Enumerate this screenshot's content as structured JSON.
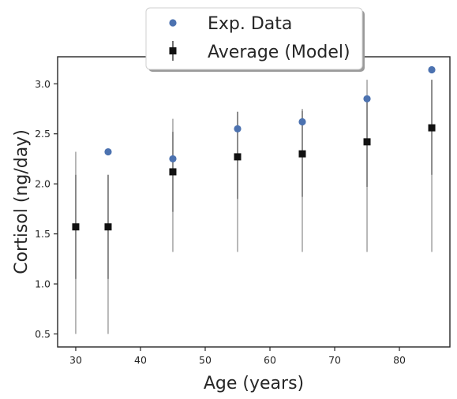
{
  "chart_data": {
    "type": "scatter",
    "title": "",
    "xlabel": "Age (years)",
    "ylabel": "Cortisol (ng/day)",
    "xlim": [
      27.2,
      87.8
    ],
    "ylim": [
      0.37,
      3.27
    ],
    "xticks": [
      30,
      40,
      50,
      60,
      70,
      80
    ],
    "yticks": [
      0.5,
      1.0,
      1.5,
      2.0,
      2.5,
      3.0
    ],
    "grid": false,
    "legend_position": "upper-center",
    "series": [
      {
        "name": "Exp. Data",
        "marker": "circle",
        "color": "#4c72b0",
        "x": [
          35,
          45,
          55,
          65,
          75,
          85
        ],
        "y": [
          2.32,
          2.25,
          2.55,
          2.62,
          2.85,
          3.14
        ]
      },
      {
        "name": "Average (Model)",
        "marker": "square",
        "color": "#111111",
        "errorbar_color": "#808080",
        "x": [
          30,
          35,
          45,
          55,
          65,
          75,
          85
        ],
        "y": [
          1.57,
          1.57,
          2.12,
          2.27,
          2.3,
          2.42,
          2.56
        ],
        "range_low": [
          0.5,
          0.5,
          1.32,
          1.32,
          1.32,
          1.32,
          1.32
        ],
        "range_high": [
          2.32,
          2.09,
          2.65,
          2.72,
          2.75,
          3.04,
          3.04
        ],
        "inner_low": [
          1.05,
          1.05,
          1.72,
          1.85,
          1.87,
          1.97,
          2.09
        ],
        "inner_high": [
          2.09,
          2.09,
          2.52,
          2.72,
          2.73,
          2.87,
          3.04
        ]
      }
    ]
  }
}
